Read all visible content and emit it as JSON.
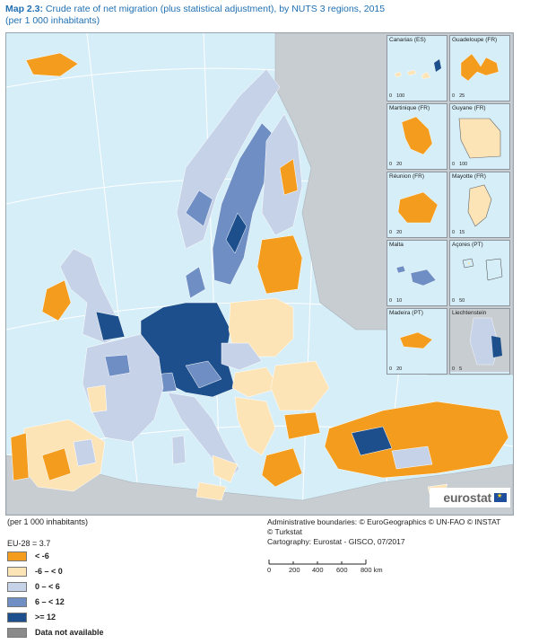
{
  "header": {
    "title_prefix": "Map 2.3:",
    "title_text": " Crude rate of net migration (plus statistical adjustment), by NUTS 3 regions, 2015",
    "subtitle": "(per 1 000 inhabitants)"
  },
  "colors": {
    "sea": "#d6eef8",
    "non_eu_land": "#c8cdd1",
    "class_lt_minus6": "#f39c1d",
    "class_minus6_0": "#fde4b7",
    "class_0_6": "#c6d2e8",
    "class_6_12": "#6f8fc4",
    "class_ge_12": "#1d4f8c",
    "na": "#8a8a8a",
    "title": "#1f6fb2"
  },
  "insets": [
    {
      "name": "Canarias (ES)",
      "scale": [
        "0",
        "100"
      ]
    },
    {
      "name": "Guadeloupe (FR)",
      "scale": [
        "0",
        "25"
      ]
    },
    {
      "name": "Martinique (FR)",
      "scale": [
        "0",
        "20"
      ]
    },
    {
      "name": "Guyane (FR)",
      "scale": [
        "0",
        "100"
      ]
    },
    {
      "name": "Réunion (FR)",
      "scale": [
        "0",
        "20"
      ]
    },
    {
      "name": "Mayotte (FR)",
      "scale": [
        "0",
        "15"
      ]
    },
    {
      "name": "Malta",
      "scale": [
        "0",
        "10"
      ]
    },
    {
      "name": "Açores (PT)",
      "scale": [
        "0",
        "50"
      ]
    },
    {
      "name": "Madeira (PT)",
      "scale": [
        "0",
        "20"
      ]
    },
    {
      "name": "Liechtenstein",
      "scale": [
        "0",
        "5"
      ]
    }
  ],
  "logo": {
    "text": "eurostat"
  },
  "legend": {
    "unit": "(per 1 000 inhabitants)",
    "eu_value": "EU-28 = 3.7",
    "items": [
      {
        "label": "< -6",
        "color": "#f39c1d"
      },
      {
        "label": "-6 – < 0",
        "color": "#fde4b7"
      },
      {
        "label": "0 – < 6",
        "color": "#c6d2e8"
      },
      {
        "label": "6 – < 12",
        "color": "#6f8fc4"
      },
      {
        "label": ">= 12",
        "color": "#1d4f8c"
      },
      {
        "label": "Data not available",
        "color": "#8a8a8a"
      }
    ]
  },
  "notes": {
    "boundaries": "Administrative boundaries: © EuroGeographics © UN-FAO © INSTAT",
    "boundaries_2": "© Turkstat",
    "cartography": "Cartography: Eurostat - GISCO, 07/2017"
  },
  "scale_bar": {
    "labels": [
      "0",
      "200",
      "400",
      "600",
      "800 km"
    ]
  }
}
